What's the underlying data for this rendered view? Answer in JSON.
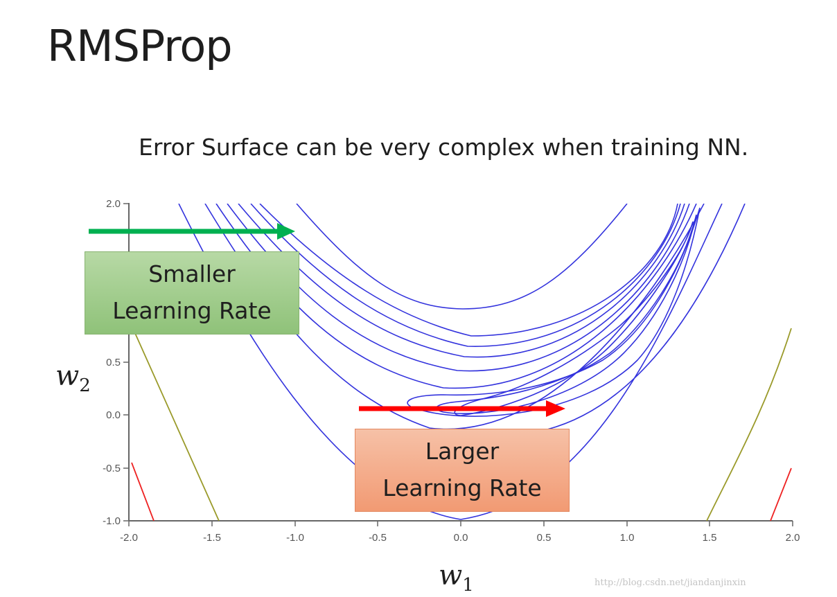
{
  "slide": {
    "title": "RMSProp",
    "subtitle": "Error Surface can be very complex when training NN."
  },
  "plot": {
    "x_var": "w",
    "x_sub": "1",
    "y_var": "w",
    "y_sub": "2",
    "x_ticks": [
      "-2.0",
      "-1.5",
      "-1.0",
      "-0.5",
      "0.0",
      "0.5",
      "1.0",
      "1.5",
      "2.0"
    ],
    "y_ticks": [
      "2.0",
      "0.5",
      "0.0",
      "-0.5",
      "-1.0"
    ],
    "x_range": [
      -2.0,
      2.0
    ],
    "y_range": [
      -1.0,
      2.0
    ]
  },
  "annotations": {
    "small_lr": {
      "line1": "Smaller",
      "line2": "Learning Rate",
      "arrow_color": "#00b050",
      "box_color": "#a9d18e"
    },
    "large_lr": {
      "line1": "Larger",
      "line2": "Learning Rate",
      "arrow_color": "#ff0000",
      "box_color": "#f4b183"
    }
  },
  "contour_colors": {
    "main": "#3333dd",
    "outer": "#9a9a2a",
    "outermost": "#ee2222"
  },
  "watermark": "http://blog.csdn.net/jiandanjinxin"
}
